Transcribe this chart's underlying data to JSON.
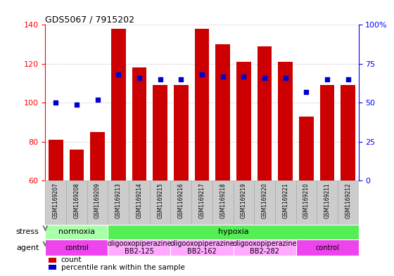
{
  "title": "GDS5067 / 7915202",
  "samples": [
    "GSM1169207",
    "GSM1169208",
    "GSM1169209",
    "GSM1169213",
    "GSM1169214",
    "GSM1169215",
    "GSM1169216",
    "GSM1169217",
    "GSM1169218",
    "GSM1169219",
    "GSM1169220",
    "GSM1169221",
    "GSM1169210",
    "GSM1169211",
    "GSM1169212"
  ],
  "counts": [
    81,
    76,
    85,
    138,
    118,
    109,
    109,
    138,
    130,
    121,
    129,
    121,
    93,
    109,
    109
  ],
  "percentiles": [
    50,
    49,
    52,
    68,
    66,
    65,
    65,
    68,
    67,
    67,
    66,
    66,
    57,
    65,
    65
  ],
  "bar_color": "#cc0000",
  "dot_color": "#0000cc",
  "ylim_left": [
    60,
    140
  ],
  "ylim_right": [
    0,
    100
  ],
  "yticks_left": [
    60,
    80,
    100,
    120,
    140
  ],
  "yticks_right": [
    0,
    25,
    50,
    75,
    100
  ],
  "stress_labels": [
    {
      "label": "normoxia",
      "start": 0,
      "end": 3,
      "color": "#aaffaa"
    },
    {
      "label": "hypoxia",
      "start": 3,
      "end": 15,
      "color": "#55ee55"
    }
  ],
  "agent_labels": [
    {
      "label": "control",
      "start": 0,
      "end": 3,
      "color": "#ee44ee"
    },
    {
      "label": "oligooxopiperazine\nBB2-125",
      "start": 3,
      "end": 6,
      "color": "#ffaaff"
    },
    {
      "label": "oligooxopiperazine\nBB2-162",
      "start": 6,
      "end": 9,
      "color": "#ffaaff"
    },
    {
      "label": "oligooxopiperazine\nBB2-282",
      "start": 9,
      "end": 12,
      "color": "#ffaaff"
    },
    {
      "label": "control",
      "start": 12,
      "end": 15,
      "color": "#ee44ee"
    }
  ],
  "tick_bg_color": "#cccccc",
  "tick_border_color": "#aaaaaa",
  "grid_color": "#000000",
  "grid_alpha": 0.25,
  "bg_color": "#ffffff"
}
